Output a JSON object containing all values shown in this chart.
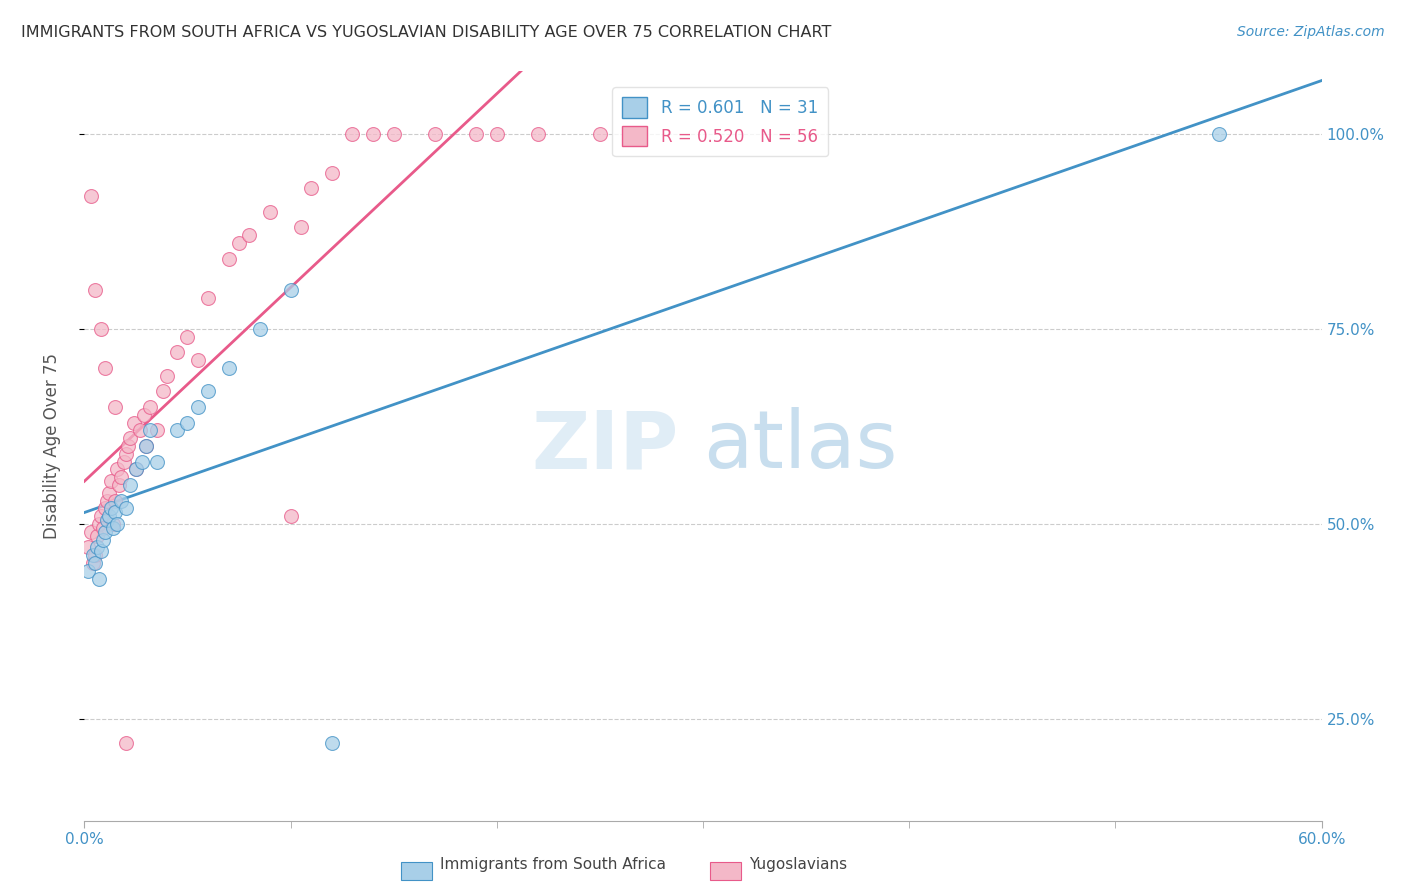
{
  "title": "IMMIGRANTS FROM SOUTH AFRICA VS YUGOSLAVIAN DISABILITY AGE OVER 75 CORRELATION CHART",
  "source": "Source: ZipAtlas.com",
  "ylabel": "Disability Age Over 75",
  "legend_label_blue": "Immigrants from South Africa",
  "legend_label_pink": "Yugoslavians",
  "color_blue": "#a8cfe8",
  "color_pink": "#f4b8c8",
  "line_color_blue": "#4292c6",
  "line_color_pink": "#e85a8a",
  "text_color_blue": "#4292c6",
  "text_color_pink": "#e85a8a",
  "right_axis_color": "#4292c6",
  "background_color": "#ffffff",
  "blue_x": [
    0.2,
    0.4,
    0.5,
    0.6,
    0.7,
    0.8,
    0.9,
    1.0,
    1.1,
    1.2,
    1.3,
    1.4,
    1.5,
    1.6,
    1.8,
    2.0,
    2.2,
    2.5,
    2.8,
    3.0,
    3.2,
    3.5,
    4.5,
    5.0,
    5.5,
    6.0,
    7.0,
    8.5,
    10.0,
    12.0,
    55.0
  ],
  "blue_y": [
    44.0,
    46.0,
    45.0,
    47.0,
    43.0,
    46.5,
    48.0,
    49.0,
    50.5,
    51.0,
    52.0,
    49.5,
    51.5,
    50.0,
    53.0,
    52.0,
    55.0,
    57.0,
    58.0,
    60.0,
    62.0,
    58.0,
    62.0,
    63.0,
    65.0,
    67.0,
    70.0,
    75.0,
    80.0,
    22.0,
    100.0
  ],
  "pink_x": [
    0.2,
    0.3,
    0.4,
    0.5,
    0.6,
    0.7,
    0.8,
    0.9,
    1.0,
    1.1,
    1.2,
    1.3,
    1.4,
    1.5,
    1.6,
    1.7,
    1.8,
    1.9,
    2.0,
    2.1,
    2.2,
    2.4,
    2.5,
    2.7,
    2.9,
    3.0,
    3.2,
    3.5,
    3.8,
    4.0,
    4.5,
    5.0,
    5.5,
    6.0,
    7.0,
    7.5,
    8.0,
    9.0,
    10.0,
    10.5,
    11.0,
    12.0,
    13.0,
    14.0,
    15.0,
    17.0,
    19.0,
    20.0,
    22.0,
    25.0,
    0.3,
    0.5,
    0.8,
    1.0,
    1.5,
    2.0
  ],
  "pink_y": [
    47.0,
    49.0,
    45.0,
    46.0,
    48.5,
    50.0,
    51.0,
    49.5,
    52.0,
    53.0,
    54.0,
    55.5,
    50.0,
    53.0,
    57.0,
    55.0,
    56.0,
    58.0,
    59.0,
    60.0,
    61.0,
    63.0,
    57.0,
    62.0,
    64.0,
    60.0,
    65.0,
    62.0,
    67.0,
    69.0,
    72.0,
    74.0,
    71.0,
    79.0,
    84.0,
    86.0,
    87.0,
    90.0,
    51.0,
    88.0,
    93.0,
    95.0,
    100.0,
    100.0,
    100.0,
    100.0,
    100.0,
    100.0,
    100.0,
    100.0,
    92.0,
    80.0,
    75.0,
    70.0,
    65.0,
    22.0
  ],
  "xlim": [
    0.0,
    60.0
  ],
  "ylim": [
    12.0,
    108.0
  ],
  "ytick_vals": [
    25.0,
    50.0,
    75.0,
    100.0
  ],
  "ytick_labels": [
    "25.0%",
    "50.0%",
    "75.0%",
    "100.0%"
  ],
  "xtick_minor_positions": [
    10,
    20,
    30,
    40,
    50
  ],
  "watermark_zip": "ZIP",
  "watermark_atlas": "atlas"
}
